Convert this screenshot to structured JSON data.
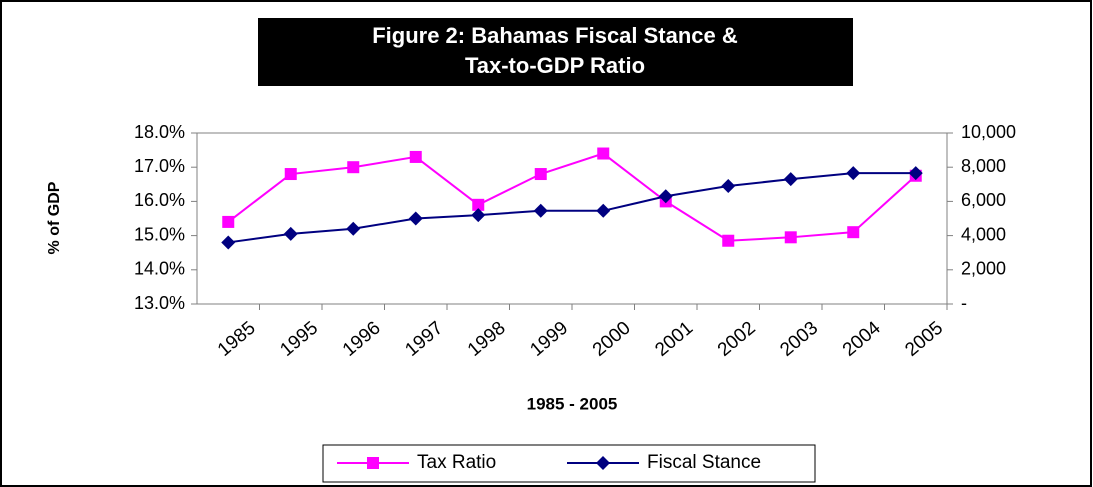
{
  "chart_data": {
    "type": "line",
    "title_lines": [
      "Figure 2: Bahamas Fiscal Stance &",
      "Tax-to-GDP Ratio"
    ],
    "ylabel": "% of GDP",
    "xlabel": "1985 - 2005",
    "categories": [
      "1985",
      "1995",
      "1996",
      "1997",
      "1998",
      "1999",
      "2000",
      "2001",
      "2002",
      "2003",
      "2004",
      "2005"
    ],
    "series": [
      {
        "name": "Tax Ratio",
        "color": "#ff00ff",
        "marker": "square",
        "axis": "y",
        "values": [
          15.4,
          16.8,
          17.0,
          17.3,
          15.9,
          16.8,
          17.4,
          16.0,
          14.85,
          14.95,
          15.1,
          16.75
        ]
      },
      {
        "name": "Fiscal Stance",
        "color": "#000080",
        "marker": "diamond",
        "axis": "y2",
        "values": [
          3600,
          4100,
          4400,
          5000,
          5200,
          5450,
          5450,
          6300,
          6900,
          7300,
          7650,
          7650
        ]
      }
    ],
    "ylim": [
      13,
      18
    ],
    "yticks": [
      {
        "value": 13,
        "label": "13.0%"
      },
      {
        "value": 14,
        "label": "14.0%"
      },
      {
        "value": 15,
        "label": "15.0%"
      },
      {
        "value": 16,
        "label": "16.0%"
      },
      {
        "value": 17,
        "label": "17.0%"
      },
      {
        "value": 18,
        "label": "18.0%"
      }
    ],
    "y2lim": [
      0,
      10000
    ],
    "y2ticks": [
      {
        "value": 0,
        "label": "-"
      },
      {
        "value": 2000,
        "label": "2,000"
      },
      {
        "value": 4000,
        "label": "4,000"
      },
      {
        "value": 6000,
        "label": "6,000"
      },
      {
        "value": 8000,
        "label": "8,000"
      },
      {
        "value": 10000,
        "label": "10,000"
      }
    ],
    "grid": false,
    "legend": "bottom"
  }
}
